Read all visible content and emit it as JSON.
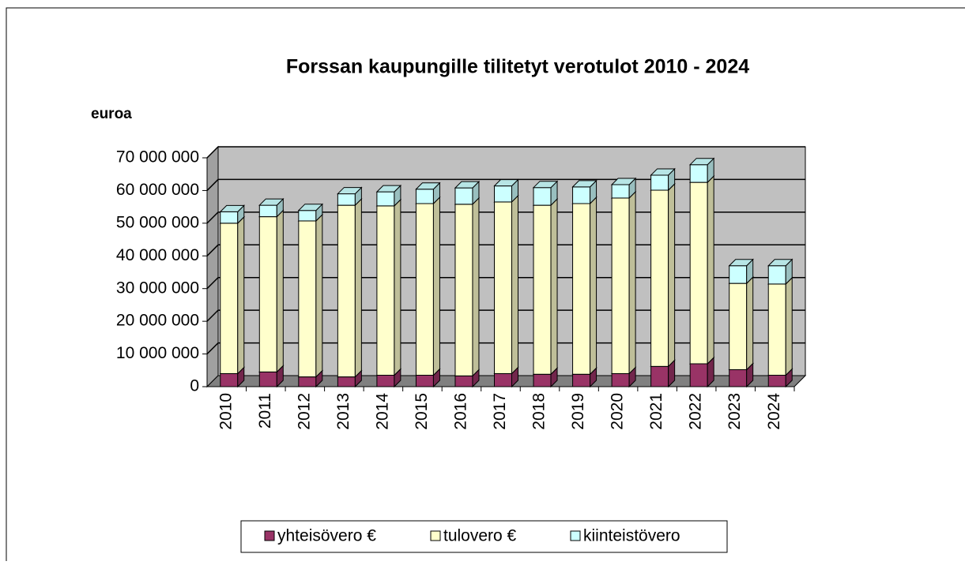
{
  "chart_data": {
    "type": "bar",
    "stacked": true,
    "title": "Forssan kaupungille tilitetyt verotulot 2010 - 2024",
    "y_label": "euroa",
    "categories": [
      "2010",
      "2011",
      "2012",
      "2013",
      "2014",
      "2015",
      "2016",
      "2017",
      "2018",
      "2019",
      "2020",
      "2021",
      "2022",
      "2023",
      "2024"
    ],
    "series": [
      {
        "name": "yhteisövero €",
        "color": "#993366",
        "values": [
          4000000,
          4500000,
          3000000,
          3000000,
          3500000,
          3500000,
          3300000,
          4000000,
          3800000,
          3800000,
          4000000,
          6200000,
          7000000,
          5200000,
          3500000
        ]
      },
      {
        "name": "tulovero €",
        "color": "#ffffcc",
        "values": [
          46000000,
          47500000,
          47700000,
          52500000,
          51800000,
          52500000,
          52500000,
          52500000,
          51700000,
          52200000,
          53700000,
          53900000,
          55500000,
          26400000,
          27900000
        ]
      },
      {
        "name": "kiinteistövero",
        "color": "#ccffff",
        "values": [
          3500000,
          3500000,
          3200000,
          3500000,
          4300000,
          4400000,
          5000000,
          4900000,
          5400000,
          5100000,
          4100000,
          4600000,
          5400000,
          5400000,
          5600000
        ]
      }
    ],
    "ylim": [
      0,
      70000000
    ],
    "yticks": [
      0,
      {
        "value": 10000000,
        "label": "10 000 000"
      },
      {
        "value": 20000000,
        "label": "20 000 000"
      },
      {
        "value": 30000000,
        "label": "30 000 000"
      },
      {
        "value": 40000000,
        "label": "40 000 000"
      },
      {
        "value": 50000000,
        "label": "50 000 000"
      },
      {
        "value": 60000000,
        "label": "60 000 000"
      },
      {
        "value": 70000000,
        "label": "70 000 000"
      }
    ],
    "grid": true,
    "legend": "bottom"
  }
}
